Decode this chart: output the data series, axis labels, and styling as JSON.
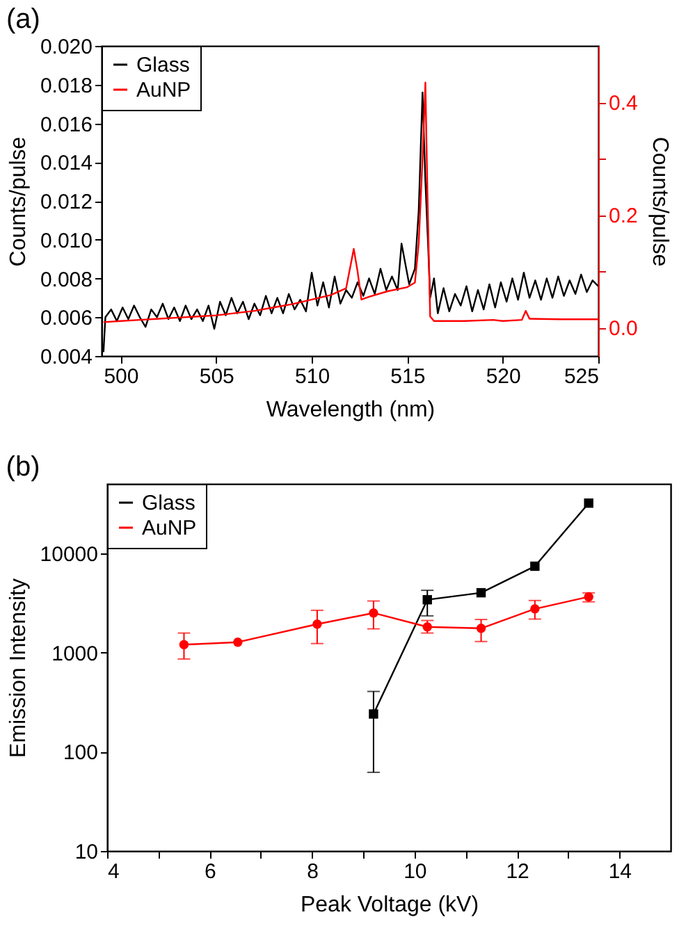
{
  "chart_data": [
    {
      "type": "line",
      "title": "(a)",
      "xlabel": "Wavelength (nm)",
      "ylabel": "Counts/pulse",
      "y2label": "Counts/pulse",
      "xlim": [
        499,
        525
      ],
      "xticks": [
        500,
        505,
        510,
        515,
        520,
        525
      ],
      "ylim": [
        0.004,
        0.02
      ],
      "yticks": [
        0.004,
        0.006,
        0.008,
        {
          "value": 0.01,
          "label": "0.010"
        },
        0.012,
        0.014,
        0.016,
        0.018,
        {
          "value": 0.02,
          "label": "0.020"
        }
      ],
      "y2lim": [
        -0.05,
        0.5
      ],
      "y2ticks": [
        {
          "value": 0,
          "label": "0.0"
        },
        {
          "value": 0.1,
          "label": null
        },
        0.2,
        {
          "value": 0.3,
          "label": null
        },
        0.4
      ],
      "legend": "top left",
      "grid": false,
      "series": [
        {
          "name": "Glass",
          "color": "#000000",
          "x": [
            499.1,
            499.2,
            499.5,
            499.8,
            500.1,
            500.4,
            500.7,
            501.0,
            501.3,
            501.6,
            501.9,
            502.2,
            502.5,
            502.8,
            503.1,
            503.4,
            503.7,
            504.0,
            504.3,
            504.6,
            504.9,
            505.2,
            505.5,
            505.8,
            506.1,
            506.4,
            506.7,
            507.0,
            507.3,
            507.6,
            507.9,
            508.2,
            508.5,
            508.8,
            509.1,
            509.4,
            509.7,
            510.0,
            510.3,
            510.6,
            510.9,
            511.2,
            511.5,
            511.8,
            512.1,
            512.4,
            512.7,
            513.0,
            513.3,
            513.6,
            513.9,
            514.2,
            514.5,
            514.7,
            515.1,
            515.4,
            515.6,
            515.8,
            515.95,
            516.1,
            516.2,
            516.4,
            516.6,
            516.9,
            517.2,
            517.5,
            517.8,
            518.1,
            518.4,
            518.7,
            519.0,
            519.3,
            519.6,
            519.9,
            520.2,
            520.5,
            520.8,
            521.1,
            521.4,
            521.7,
            522.0,
            522.3,
            522.6,
            522.9,
            523.2,
            523.5,
            523.8,
            524.1,
            524.4,
            524.7,
            525.0
          ],
          "values": [
            0.0042,
            0.006,
            0.0064,
            0.0058,
            0.0065,
            0.0059,
            0.0066,
            0.006,
            0.0055,
            0.0064,
            0.006,
            0.0067,
            0.0059,
            0.0065,
            0.0058,
            0.0066,
            0.0059,
            0.0064,
            0.0058,
            0.0066,
            0.0054,
            0.0068,
            0.0061,
            0.007,
            0.0062,
            0.0068,
            0.0059,
            0.0067,
            0.0061,
            0.0071,
            0.0062,
            0.007,
            0.0062,
            0.0072,
            0.0064,
            0.0069,
            0.0063,
            0.0083,
            0.0066,
            0.0078,
            0.0065,
            0.0081,
            0.0067,
            0.0074,
            0.007,
            0.0078,
            0.0071,
            0.008,
            0.0072,
            0.0085,
            0.0074,
            0.0081,
            0.0074,
            0.0098,
            0.0077,
            0.0085,
            0.0115,
            0.0176,
            0.013,
            0.0095,
            0.007,
            0.008,
            0.0062,
            0.0075,
            0.0063,
            0.0072,
            0.0066,
            0.0076,
            0.0063,
            0.0074,
            0.0064,
            0.0077,
            0.0065,
            0.0078,
            0.0068,
            0.008,
            0.0069,
            0.0083,
            0.007,
            0.0079,
            0.0069,
            0.008,
            0.007,
            0.0081,
            0.0071,
            0.0079,
            0.0072,
            0.0082,
            0.0073,
            0.0079,
            0.0076
          ]
        },
        {
          "name": "AuNP",
          "color": "#ff0000",
          "axis": "y2",
          "x": [
            499.1,
            500,
            501,
            502,
            503,
            504,
            505,
            506,
            507,
            508,
            509,
            510,
            511,
            511.8,
            512.2,
            512.4,
            512.6,
            513,
            514,
            515,
            515.4,
            515.6,
            515.8,
            515.95,
            516.05,
            516.2,
            516.4,
            518,
            519.5,
            520,
            521,
            521.2,
            521.4,
            523,
            525
          ],
          "values": [
            0.01,
            0.012,
            0.014,
            0.016,
            0.018,
            0.02,
            0.022,
            0.026,
            0.03,
            0.036,
            0.042,
            0.05,
            0.058,
            0.07,
            0.14,
            0.1,
            0.05,
            0.055,
            0.065,
            0.072,
            0.08,
            0.15,
            0.3,
            0.435,
            0.25,
            0.02,
            0.012,
            0.012,
            0.014,
            0.012,
            0.014,
            0.03,
            0.016,
            0.015,
            0.015
          ]
        }
      ]
    },
    {
      "type": "line",
      "title": "(b)",
      "xlabel": "Peak Voltage (kV)",
      "ylabel": "Emission Intensity",
      "log": "y",
      "xlim": [
        4,
        15
      ],
      "xticks": [
        4,
        {
          "value": 5,
          "label": null
        },
        6,
        {
          "value": 7,
          "label": null
        },
        8,
        {
          "value": 9,
          "label": null
        },
        10,
        {
          "value": 11,
          "label": null
        },
        12,
        {
          "value": 13,
          "label": null
        },
        14
      ],
      "ylim": [
        10,
        50000
      ],
      "yticks": [
        10,
        100,
        1000,
        10000
      ],
      "legend": "top left",
      "grid": false,
      "series": [
        {
          "name": "Glass",
          "color": "#000000",
          "marker": "square",
          "x": [
            9.2,
            10.25,
            11.3,
            12.35,
            13.4
          ],
          "values": [
            240,
            3400,
            4000,
            7400,
            32000
          ],
          "errors": [
            [
              62,
              405
            ],
            [
              2340,
              4230
            ],
            null,
            null,
            null
          ]
        },
        {
          "name": "AuNP",
          "color": "#ff0000",
          "marker": "circle",
          "x": [
            5.5,
            6.55,
            8.1,
            9.2,
            10.25,
            11.3,
            12.35,
            13.4
          ],
          "values": [
            1200,
            1270,
            1930,
            2500,
            1810,
            1750,
            2750,
            3640
          ],
          "errors": [
            [
              860,
              1570
            ],
            null,
            [
              1230,
              2660
            ],
            [
              1730,
              3300
            ],
            [
              1570,
              2100
            ],
            [
              1290,
              2150
            ],
            [
              2170,
              3340
            ],
            [
              3240,
              3990
            ]
          ]
        }
      ]
    }
  ]
}
